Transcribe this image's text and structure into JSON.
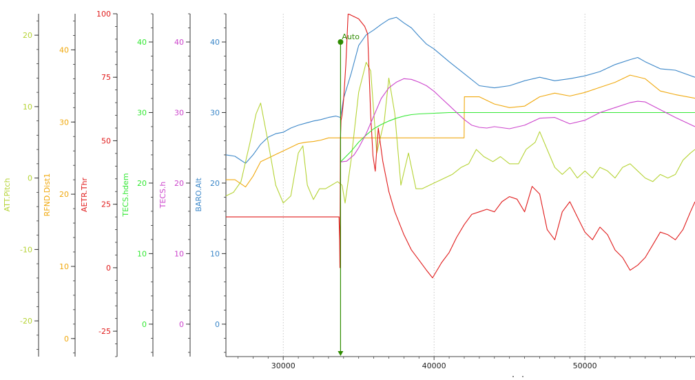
{
  "chart_data": {
    "type": "line",
    "title": "",
    "xlabel": "Index",
    "xlim": [
      26200,
      57300
    ],
    "x_ticks": [
      30000,
      40000,
      50000
    ],
    "grid": true,
    "axes": [
      {
        "name": "ATT.Pitch",
        "color": "#b5d334",
        "ylim": [
          -25,
          23
        ],
        "ticks": [
          -20,
          -10,
          0,
          10,
          20
        ]
      },
      {
        "name": "RFND.Dist1",
        "color": "#f0a80c",
        "ylim": [
          -2.5,
          45
        ],
        "ticks": [
          0,
          10,
          20,
          30,
          40
        ]
      },
      {
        "name": "AETR.Thr",
        "color": "#e01a1a",
        "ylim": [
          -35,
          100
        ],
        "ticks": [
          -25,
          0,
          25,
          50,
          75,
          100
        ]
      },
      {
        "name": "TECS.hdem",
        "color": "#33e833",
        "ylim": [
          -4.6,
          44
        ],
        "ticks": [
          0,
          10,
          20,
          30,
          40
        ]
      },
      {
        "name": "TECS.h",
        "color": "#cc44cc",
        "ylim": [
          -4.6,
          44
        ],
        "ticks": [
          0,
          10,
          20,
          30,
          40
        ]
      },
      {
        "name": "BARO.Alt",
        "color": "#3a86c8",
        "ylim": [
          -4.6,
          44
        ],
        "ticks": [
          0,
          10,
          20,
          30,
          40
        ]
      }
    ],
    "series": [
      {
        "name": "BARO.Alt",
        "axis": 5,
        "color": "#3a86c8",
        "x": [
          26200,
          26800,
          27500,
          28000,
          28500,
          29000,
          29500,
          30000,
          30500,
          31000,
          31500,
          32000,
          32500,
          33000,
          33500,
          33800,
          34000,
          34500,
          35000,
          35500,
          36000,
          36500,
          37000,
          37500,
          38000,
          38500,
          39000,
          39500,
          40000,
          41000,
          42000,
          43000,
          44000,
          45000,
          46000,
          47000,
          48000,
          49000,
          50000,
          51000,
          52000,
          53000,
          53500,
          54000,
          55000,
          56000,
          57300
        ],
        "y": [
          24,
          23.8,
          22.8,
          24,
          25.5,
          26.5,
          27,
          27.2,
          27.8,
          28.2,
          28.5,
          28.8,
          29,
          29.3,
          29.5,
          29.3,
          32,
          35.5,
          39.5,
          41,
          41.7,
          42.5,
          43.2,
          43.5,
          42.7,
          42,
          40.8,
          39.7,
          39,
          37.2,
          35.5,
          33.8,
          33.5,
          33.8,
          34.5,
          35,
          34.5,
          34.8,
          35.2,
          35.8,
          36.8,
          37.5,
          37.8,
          37.2,
          36.2,
          36,
          35
        ]
      },
      {
        "name": "RFND.Dist1",
        "axis": 1,
        "color": "#f0a80c",
        "x": [
          26200,
          26800,
          27500,
          28000,
          28500,
          29000,
          29500,
          30000,
          30500,
          31000,
          31500,
          32000,
          32500,
          33000,
          33500,
          33800,
          34000,
          35000,
          36000,
          37000,
          38000,
          39000,
          40000,
          41000,
          41990,
          42010,
          43000,
          44000,
          45000,
          46000,
          47000,
          48000,
          49000,
          50000,
          51000,
          52000,
          53000,
          54000,
          55000,
          56000,
          57300
        ],
        "y": [
          22,
          22,
          21,
          22.5,
          24.5,
          25,
          25.5,
          26,
          26.5,
          27,
          27.2,
          27.3,
          27.5,
          27.8,
          27.8,
          27.8,
          27.8,
          27.8,
          27.8,
          27.8,
          27.8,
          27.8,
          27.8,
          27.8,
          27.8,
          33.5,
          33.5,
          32.5,
          32,
          32.2,
          33.5,
          34,
          33.6,
          34.1,
          34.8,
          35.5,
          36.5,
          36,
          34.3,
          33.8,
          33.3
        ]
      },
      {
        "name": "ATT.Pitch",
        "axis": 0,
        "color": "#b5d334",
        "x": [
          26200,
          26700,
          27200,
          27800,
          28200,
          28500,
          29000,
          29500,
          30000,
          30500,
          31000,
          31300,
          31600,
          32000,
          32400,
          32800,
          33200,
          33600,
          33900,
          34100,
          34500,
          35000,
          35500,
          35800,
          36200,
          36700,
          37000,
          37400,
          37800,
          38300,
          38800,
          39200,
          39700,
          40200,
          40700,
          41200,
          41800,
          42300,
          42800,
          43300,
          43900,
          44400,
          45000,
          45600,
          46100,
          46700,
          47000,
          47500,
          48000,
          48500,
          49000,
          49500,
          50000,
          50500,
          51000,
          51500,
          52000,
          52500,
          53000,
          53500,
          54000,
          54500,
          55000,
          55500,
          56000,
          56500,
          57000,
          57300
        ],
        "y": [
          -2.5,
          -2,
          -0.5,
          5,
          9,
          10.5,
          5,
          -1,
          -3.5,
          -2.5,
          3.5,
          4.5,
          -1,
          -3,
          -1.5,
          -1.5,
          -1,
          -0.5,
          -1,
          -3.5,
          2.5,
          12,
          16.2,
          15,
          3.5,
          8,
          14,
          9,
          -1,
          3.5,
          -1.5,
          -1.5,
          -1,
          -0.5,
          0,
          0.5,
          1.5,
          2,
          4,
          3,
          2.3,
          3,
          2,
          2,
          4,
          5,
          6.5,
          4,
          1.5,
          0.5,
          1.5,
          0,
          1,
          0,
          1.5,
          1,
          0,
          1.5,
          2,
          1,
          0,
          -0.5,
          0.5,
          0,
          0.5,
          2.5,
          3.5,
          4
        ]
      },
      {
        "name": "AETR.Thr",
        "axis": 2,
        "color": "#e01a1a",
        "x": [
          26200,
          33700,
          33740,
          33760,
          33790,
          33830,
          33900,
          34000,
          34150,
          34300,
          35000,
          35400,
          35600,
          35800,
          35950,
          36100,
          36300,
          36600,
          37000,
          37400,
          38000,
          38500,
          39000,
          39500,
          39900,
          40500,
          41000,
          41500,
          42000,
          42500,
          43000,
          43500,
          44000,
          44500,
          45000,
          45500,
          46000,
          46500,
          47000,
          47500,
          48000,
          48500,
          49000,
          49500,
          50000,
          50500,
          51000,
          51500,
          52000,
          52500,
          53000,
          53500,
          54000,
          54500,
          55000,
          55500,
          56000,
          56500,
          57000,
          57300
        ],
        "y": [
          20,
          20,
          11,
          0,
          50,
          58,
          60,
          66,
          80,
          100,
          98,
          95,
          92,
          60,
          44,
          38,
          55,
          42,
          30,
          22,
          13,
          7,
          3,
          -1,
          -4,
          2,
          6,
          12,
          17,
          21,
          22,
          23,
          22,
          26,
          28,
          27,
          22,
          32,
          29,
          15,
          11,
          22,
          26,
          20,
          14,
          11,
          16,
          13,
          7,
          4,
          -1,
          1,
          4,
          9,
          14,
          13,
          11,
          15,
          22,
          26
        ]
      },
      {
        "name": "TECS.hdem",
        "axis": 3,
        "color": "#33e833",
        "x": [
          33800,
          34500,
          35000,
          35500,
          36000,
          36500,
          37000,
          37500,
          38000,
          38500,
          39000,
          40000,
          41000,
          42000,
          43000,
          44000,
          46000,
          50000,
          54000,
          57300
        ],
        "y": [
          23,
          24.5,
          25.8,
          26.8,
          27.7,
          28.3,
          28.8,
          29.2,
          29.5,
          29.7,
          29.8,
          29.9,
          30,
          30,
          30,
          30,
          30,
          30,
          30,
          30
        ]
      },
      {
        "name": "TECS.h",
        "axis": 4,
        "color": "#cc44cc",
        "x": [
          33800,
          34200,
          34700,
          35000,
          35500,
          36000,
          36500,
          37000,
          37500,
          38000,
          38500,
          39000,
          39500,
          40000,
          40500,
          41000,
          41500,
          42000,
          42500,
          43000,
          43500,
          44000,
          45000,
          46000,
          47000,
          48000,
          49000,
          50000,
          51000,
          52000,
          53000,
          53500,
          54000,
          55000,
          56000,
          57300
        ],
        "y": [
          23,
          23.1,
          24,
          25,
          27,
          29.5,
          32,
          33.5,
          34.3,
          34.8,
          34.7,
          34.3,
          33.8,
          33,
          32,
          31,
          30,
          29,
          28.2,
          27.9,
          27.8,
          28,
          27.7,
          28.2,
          29.2,
          29.3,
          28.4,
          28.9,
          30,
          30.7,
          31.4,
          31.6,
          31.5,
          30.4,
          29.3,
          28
        ]
      }
    ],
    "annotations": [
      {
        "text": "Auto",
        "x": 33800,
        "color": "#2e8b00",
        "marker_axis": 5,
        "marker_y": 40
      }
    ]
  }
}
